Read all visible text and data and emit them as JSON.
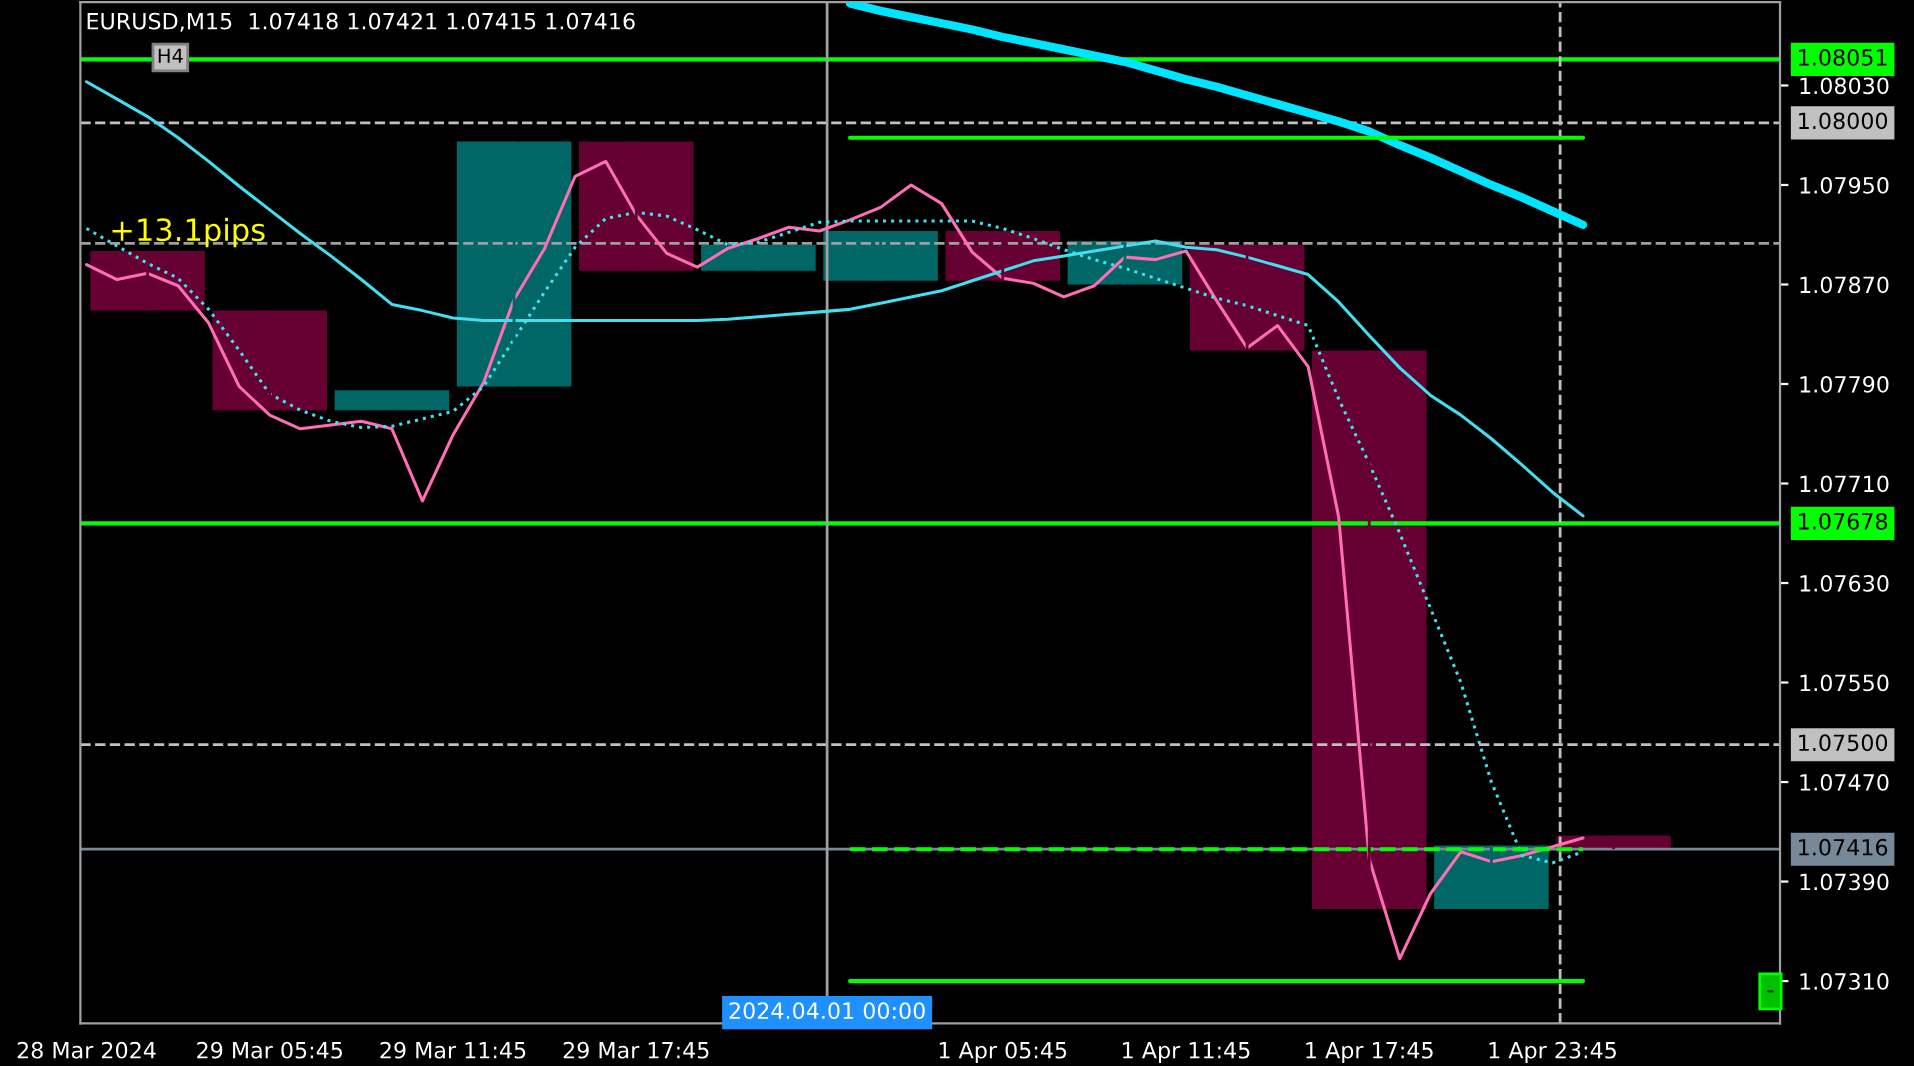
{
  "chart_data": {
    "type": "candlestick",
    "title": "EURUSD,M15  1.07418 1.07421 1.07415 1.07416",
    "categories": [
      "28 Mar 2024",
      null,
      null,
      null,
      null,
      null,
      "29 Mar 05:45",
      null,
      null,
      null,
      null,
      null,
      "29 Mar 11:45",
      null,
      null,
      null,
      null,
      null,
      "29 Mar 17:45",
      null,
      null,
      null,
      null,
      null,
      null,
      null,
      null,
      null,
      null,
      null,
      "1 Apr 05:45",
      null,
      null,
      null,
      null,
      null,
      "1 Apr 11:45",
      null,
      null,
      null,
      null,
      null,
      "1 Apr 17:45",
      null,
      null,
      null,
      null,
      null,
      "1 Apr 23:45",
      null,
      null,
      null,
      null,
      null,
      null,
      null
    ],
    "ohlc": [
      null,
      null,
      [
        1.07897,
        1.07897,
        1.07849,
        1.07849
      ],
      null,
      null,
      null,
      [
        1.07849,
        1.07849,
        1.07769,
        1.07769
      ],
      null,
      null,
      null,
      [
        1.07769,
        1.07785,
        1.07769,
        1.07785
      ],
      null,
      null,
      null,
      [
        1.07788,
        1.07985,
        1.07788,
        1.07985
      ],
      null,
      null,
      null,
      [
        1.07985,
        1.07985,
        1.07881,
        1.07881
      ],
      null,
      null,
      null,
      [
        1.07881,
        1.07902,
        1.07881,
        1.07902
      ],
      null,
      null,
      null,
      [
        1.07873,
        1.07913,
        1.07873,
        1.07913
      ],
      null,
      null,
      null,
      [
        1.07913,
        1.07913,
        1.07873,
        1.07873
      ],
      null,
      null,
      null,
      [
        1.0787,
        1.07905,
        1.0787,
        1.07905
      ],
      null,
      null,
      null,
      [
        1.07902,
        1.07902,
        1.07817,
        1.07817
      ],
      null,
      null,
      null,
      [
        1.07817,
        1.07817,
        1.07368,
        1.07368
      ],
      null,
      null,
      null,
      [
        1.07368,
        1.07419,
        1.07368,
        1.07419
      ],
      null,
      null,
      null,
      [
        1.07427,
        1.07427,
        1.07416,
        1.07416
      ],
      null,
      null,
      null,
      null,
      null
    ],
    "colors": [
      null,
      null,
      "#660033",
      null,
      null,
      null,
      "#660033",
      null,
      null,
      null,
      "#006666",
      null,
      null,
      null,
      "#006666",
      null,
      null,
      null,
      "#660033",
      null,
      null,
      null,
      "#006666",
      null,
      null,
      null,
      "#006666",
      null,
      null,
      null,
      "#660033",
      null,
      null,
      null,
      "#006666",
      null,
      null,
      null,
      "#660033",
      null,
      null,
      null,
      "#660033",
      null,
      null,
      null,
      "#006666",
      null,
      null,
      null,
      "#660033",
      null,
      null,
      null,
      null,
      null
    ],
    "series": [
      {
        "type": "line",
        "color": "#ff6eb4",
        "line_style": "solid",
        "values": [
          1.07886,
          1.07874,
          1.07879,
          1.07869,
          1.07839,
          1.07788,
          1.07765,
          1.07754,
          1.07757,
          1.0776,
          1.07754,
          1.07696,
          1.07749,
          1.07791,
          1.07858,
          1.07899,
          1.07957,
          1.07969,
          1.07926,
          1.07895,
          1.07884,
          1.07899,
          1.07907,
          1.07916,
          1.07913,
          1.07922,
          1.07932,
          1.0795,
          1.07935,
          1.07896,
          1.07875,
          1.07871,
          1.0786,
          1.07869,
          1.07892,
          1.0789,
          1.07897,
          1.07857,
          1.07819,
          1.07837,
          1.07804,
          1.07683,
          1.07408,
          1.07328,
          1.0738,
          1.07414,
          1.07406,
          1.07411,
          1.07418,
          1.07425,
          null,
          null,
          null,
          null,
          null,
          null
        ]
      },
      {
        "type": "line",
        "color": "#00e5ff",
        "line_style": "solid",
        "values": [
          null,
          null,
          null,
          null,
          null,
          null,
          null,
          null,
          null,
          null,
          null,
          null,
          null,
          null,
          null,
          null,
          null,
          null,
          null,
          null,
          null,
          null,
          null,
          null,
          null,
          1.08096,
          1.0809,
          1.08085,
          1.0808,
          1.08075,
          1.08069,
          1.08064,
          1.08059,
          1.08054,
          1.08049,
          1.08042,
          1.08035,
          1.08029,
          1.08022,
          1.08015,
          1.08008,
          1.08001,
          1.07993,
          1.07982,
          1.07972,
          1.07961,
          1.0795,
          1.0794,
          1.07929,
          1.07918,
          null,
          null,
          null,
          null,
          null,
          null
        ]
      },
      {
        "type": "line",
        "color": "#40e0f0",
        "line_style": "solid",
        "values": [
          1.08033,
          1.08019,
          1.08005,
          1.07988,
          1.07969,
          1.07949,
          1.0793,
          1.07911,
          1.07893,
          1.07874,
          1.07854,
          1.07849,
          1.07843,
          1.07841,
          1.07841,
          1.07841,
          1.07841,
          1.07841,
          1.07841,
          1.07841,
          1.07841,
          1.07842,
          1.07844,
          1.07846,
          1.07848,
          1.0785,
          1.07855,
          1.0786,
          1.07865,
          1.07873,
          1.07881,
          1.07889,
          1.07893,
          1.07897,
          1.07901,
          1.07905,
          1.079,
          1.07898,
          1.07892,
          1.07885,
          1.07878,
          1.07856,
          1.07829,
          1.07803,
          1.07781,
          1.07765,
          1.07746,
          1.07725,
          1.07703,
          1.07684,
          null,
          null,
          null,
          null,
          null,
          null
        ]
      },
      {
        "type": "line",
        "color": "#40e0f0",
        "line_style": "dotted",
        "values": [
          1.07915,
          1.07901,
          1.07887,
          1.07875,
          1.0785,
          1.07817,
          1.07782,
          1.07769,
          1.0776,
          1.07755,
          1.07756,
          1.07762,
          1.07768,
          1.07788,
          1.07826,
          1.07864,
          1.079,
          1.07923,
          1.07928,
          1.07925,
          1.07914,
          1.07902,
          1.07904,
          1.07912,
          1.0792,
          1.07921,
          1.07921,
          1.07921,
          1.07921,
          1.07921,
          1.07915,
          1.07907,
          1.07898,
          1.0789,
          1.07883,
          1.07875,
          1.07867,
          1.07859,
          1.07853,
          1.07845,
          1.07837,
          1.07778,
          1.07726,
          1.0767,
          1.0761,
          1.0755,
          1.0747,
          1.07411,
          1.07405,
          1.07414,
          null,
          null,
          null,
          null,
          null,
          null
        ]
      },
      {
        "type": "line",
        "color": "#00ff00",
        "line_style": "solid",
        "values": [
          null,
          null,
          null,
          null,
          null,
          null,
          null,
          null,
          null,
          null,
          null,
          null,
          null,
          null,
          null,
          null,
          null,
          null,
          null,
          null,
          null,
          null,
          null,
          null,
          null,
          1.07988,
          1.07988,
          1.07988,
          1.07988,
          1.07988,
          1.07988,
          1.07988,
          1.07988,
          1.07988,
          1.07988,
          1.07988,
          1.07988,
          1.07988,
          1.07988,
          1.07988,
          1.07988,
          1.07988,
          1.07988,
          1.07988,
          1.07988,
          1.07988,
          1.07988,
          1.07988,
          1.07988,
          1.07988,
          null,
          null,
          null,
          null,
          null,
          null
        ]
      },
      {
        "type": "line",
        "color": "#00ff00",
        "line_style": "solid",
        "values": [
          null,
          null,
          null,
          null,
          null,
          null,
          null,
          null,
          null,
          null,
          null,
          null,
          null,
          null,
          null,
          null,
          null,
          null,
          null,
          null,
          null,
          null,
          null,
          null,
          null,
          1.0731,
          1.0731,
          1.0731,
          1.0731,
          1.0731,
          1.0731,
          1.0731,
          1.0731,
          1.0731,
          1.0731,
          1.0731,
          1.0731,
          1.0731,
          1.0731,
          1.0731,
          1.0731,
          1.0731,
          1.0731,
          1.0731,
          1.0731,
          1.0731,
          1.0731,
          1.0731,
          1.0731,
          1.0731,
          null,
          null,
          null,
          null,
          null,
          null
        ]
      },
      {
        "type": "line",
        "color": "#00ff00",
        "line_style": "dashed",
        "values": [
          null,
          null,
          null,
          null,
          null,
          null,
          null,
          null,
          null,
          null,
          null,
          null,
          null,
          null,
          null,
          null,
          null,
          null,
          null,
          null,
          null,
          null,
          null,
          null,
          null,
          1.07416,
          1.07416,
          1.07416,
          1.07416,
          1.07416,
          1.07416,
          1.07416,
          1.07416,
          1.07416,
          1.07416,
          1.07416,
          1.07416,
          1.07416,
          1.07416,
          1.07416,
          1.07416,
          1.07416,
          1.07416,
          1.07416,
          1.07416,
          1.07416,
          1.07416,
          1.07416,
          1.07416,
          1.07416,
          null,
          null,
          null,
          null,
          null,
          null
        ]
      }
    ],
    "ylim": [
      1.07276,
      1.08097
    ],
    "yticks": [
      {
        "value": 1.0731,
        "label": "1.07310"
      },
      {
        "value": 1.0739,
        "label": "1.07390"
      },
      {
        "value": 1.0747,
        "label": "1.07470"
      },
      {
        "value": 1.0755,
        "label": "1.07550"
      },
      {
        "value": 1.0763,
        "label": "1.07630"
      },
      {
        "value": 1.0771,
        "label": "1.07710"
      },
      {
        "value": 1.0779,
        "label": "1.07790"
      },
      {
        "value": 1.0787,
        "label": "1.07870"
      },
      {
        "value": 1.0795,
        "label": "1.07950"
      },
      {
        "value": 1.0803,
        "label": "1.08030"
      }
    ],
    "ref_lines": [
      {
        "axis": "y",
        "value": 1.08051,
        "label": "1.08051",
        "color": "#00ff00",
        "line_style": "solid"
      },
      {
        "axis": "y",
        "value": 1.08,
        "label": "1.08000",
        "color": "#c0c0c0",
        "line_style": "dashed"
      },
      {
        "axis": "y",
        "value": 1.07903,
        "color": "#a0a0a0",
        "line_style": "dashed"
      },
      {
        "axis": "y",
        "value": 1.07678,
        "label": "1.07678",
        "color": "#00ff00",
        "line_style": "solid"
      },
      {
        "axis": "y",
        "value": 1.075,
        "label": "1.07500",
        "color": "#c0c0c0",
        "line_style": "dashed"
      },
      {
        "axis": "y",
        "value": 1.07416,
        "label": "1.07416",
        "color": "#778899",
        "line_style": "solid"
      }
    ],
    "annotations": [
      "H4",
      "-",
      "+13.1pips",
      "2024.04.01 00:00"
    ],
    "grid": false,
    "legend": false
  }
}
